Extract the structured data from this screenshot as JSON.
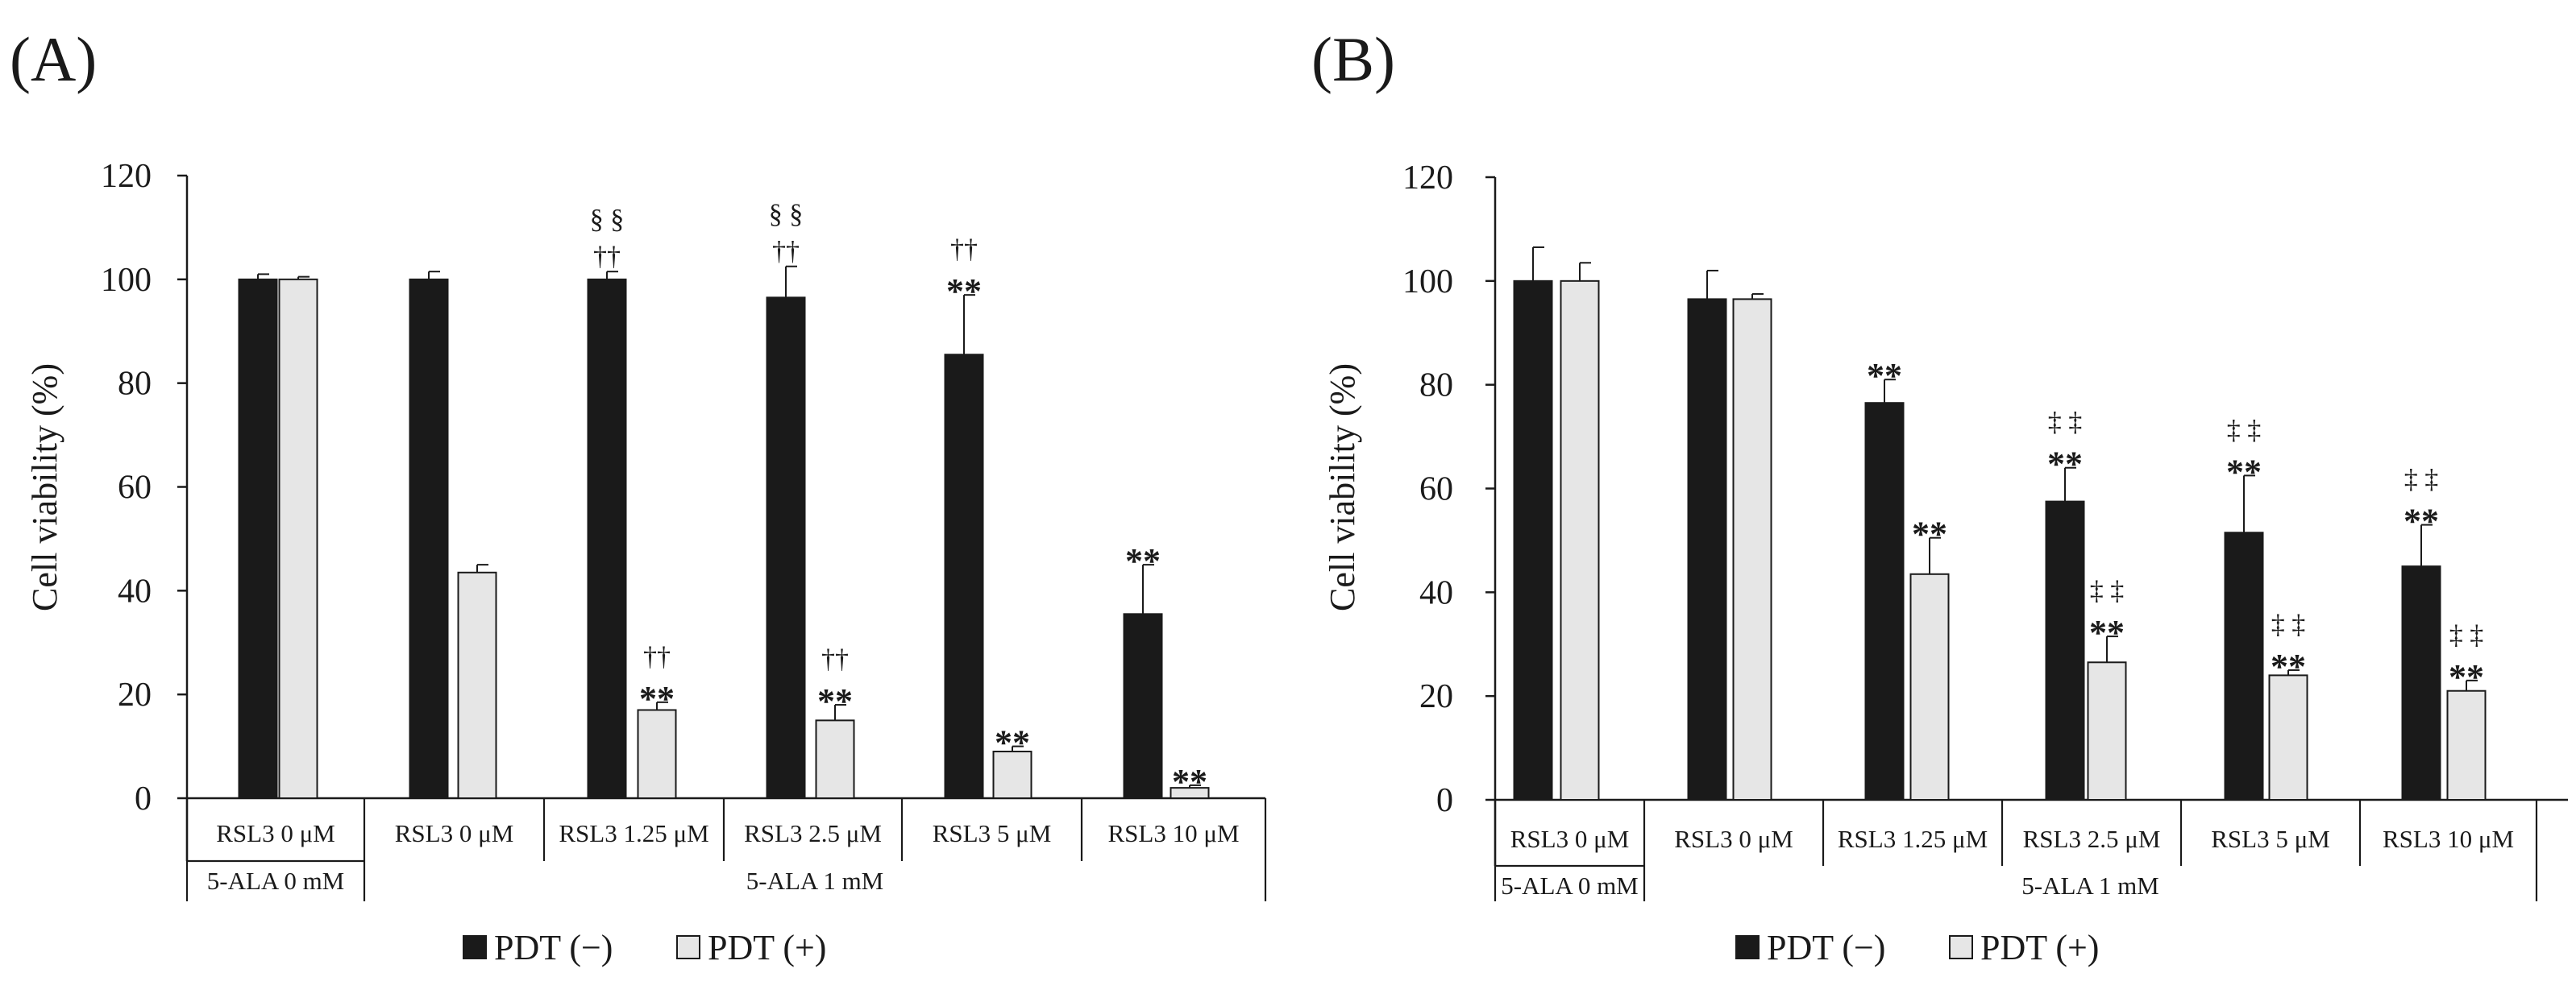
{
  "legend": {
    "series": [
      {
        "name": "PDT (−)",
        "color": "#1a1a1a"
      },
      {
        "name": "PDT (+)",
        "color": "#e6e6e6"
      }
    ]
  },
  "chart_data": [
    {
      "panel_label": "(A)",
      "type": "bar",
      "ylabel": "Cell viability (%)",
      "ylim": [
        0,
        120
      ],
      "yticks": [
        0,
        20,
        40,
        60,
        80,
        100,
        120
      ],
      "categories": [
        "RSL3 0 μM",
        "RSL3 0 μM",
        "RSL3 1.25 μM",
        "RSL3 2.5 μM",
        "RSL3 5 μM",
        "RSL3 10 μM"
      ],
      "group_labels": [
        {
          "label": "5-ALA 0 mM",
          "from": 0,
          "to": 0
        },
        {
          "label": "5-ALA 1 mM",
          "from": 1,
          "to": 5
        }
      ],
      "series": [
        {
          "name": "PDT (−)",
          "values": [
            100,
            100,
            100,
            96.5,
            85.5,
            35.5
          ],
          "errors": [
            1,
            1.5,
            1.5,
            6,
            11.5,
            9.5
          ],
          "annotations": [
            [],
            [],
            [
              "§ §",
              "††"
            ],
            [
              "§ §",
              "††"
            ],
            [
              "††",
              "**"
            ],
            [
              "**"
            ]
          ]
        },
        {
          "name": "PDT (+)",
          "values": [
            100,
            43.5,
            17,
            15,
            9,
            2
          ],
          "errors": [
            0.5,
            1.5,
            1.5,
            3,
            1,
            0.5
          ],
          "annotations": [
            [],
            [],
            [
              "††",
              "**"
            ],
            [
              "††",
              "**"
            ],
            [
              "**"
            ],
            [
              "**"
            ]
          ]
        }
      ]
    },
    {
      "panel_label": "(B)",
      "type": "bar",
      "ylabel": "Cell viability (%)",
      "ylim": [
        0,
        120
      ],
      "yticks": [
        0,
        20,
        40,
        60,
        80,
        100,
        120
      ],
      "categories": [
        "RSL3 0 μM",
        "RSL3 0 μM",
        "RSL3 1.25 μM",
        "RSL3 2.5 μM",
        "RSL3 5 μM",
        "RSL3 10 μM"
      ],
      "group_labels": [
        {
          "label": "5-ALA 0 mM",
          "from": 0,
          "to": 0
        },
        {
          "label": "5-ALA 1 mM",
          "from": 1,
          "to": 5
        }
      ],
      "series": [
        {
          "name": "PDT (−)",
          "values": [
            100,
            96.5,
            76.5,
            57.5,
            51.5,
            45
          ],
          "errors": [
            6.5,
            5.5,
            4.5,
            6.5,
            11,
            8
          ],
          "annotations": [
            [],
            [],
            [
              "**"
            ],
            [
              "‡ ‡",
              "**"
            ],
            [
              "‡ ‡",
              "**"
            ],
            [
              "‡ ‡",
              "**"
            ]
          ]
        },
        {
          "name": "PDT (+)",
          "values": [
            100,
            96.5,
            43.5,
            26.5,
            24,
            21
          ],
          "errors": [
            3.5,
            1,
            7,
            5,
            1,
            2
          ],
          "annotations": [
            [],
            [],
            [
              "**"
            ],
            [
              "‡ ‡",
              "**"
            ],
            [
              "‡ ‡",
              "**"
            ],
            [
              "‡ ‡",
              "**"
            ]
          ]
        }
      ]
    }
  ]
}
